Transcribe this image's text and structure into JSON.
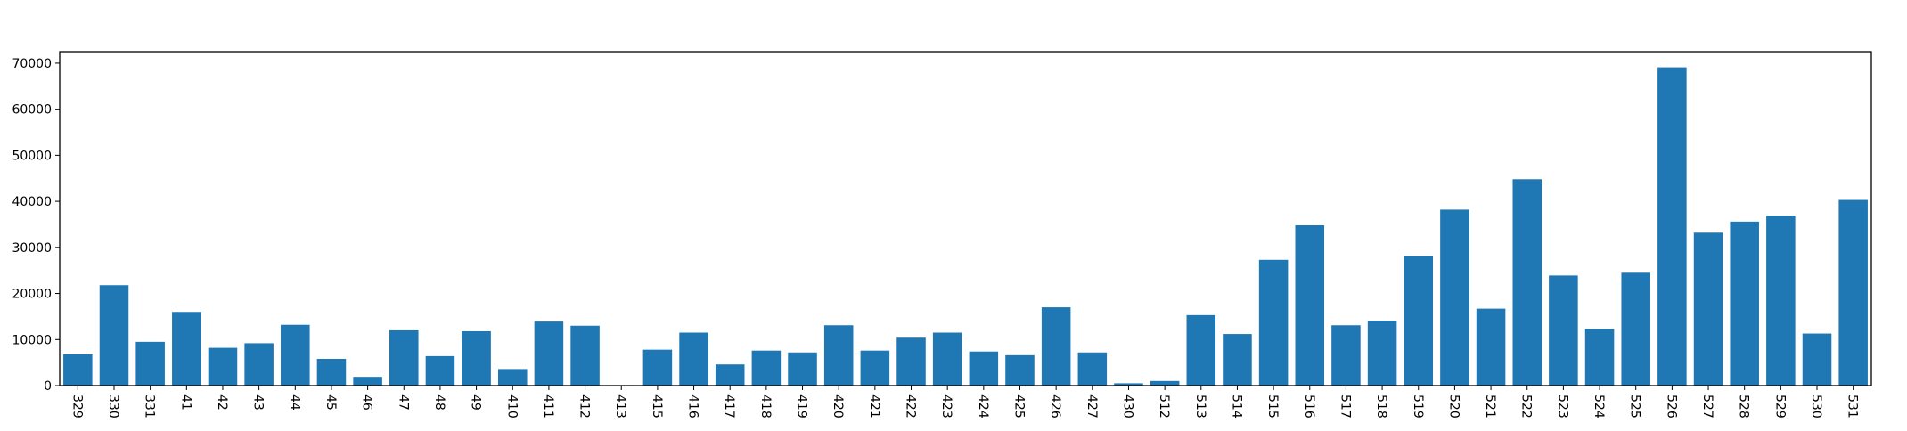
{
  "chart_data": {
    "type": "bar",
    "title": "",
    "xlabel": "",
    "ylabel": "",
    "ylim": [
      0,
      72500
    ],
    "yticks": [
      0,
      10000,
      20000,
      30000,
      40000,
      50000,
      60000,
      70000
    ],
    "ytick_labels": [
      "0",
      "10000",
      "20000",
      "30000",
      "40000",
      "50000",
      "60000",
      "70000"
    ],
    "grid": false,
    "bar_color": "#1f77b4",
    "categories": [
      "329",
      "330",
      "331",
      "41",
      "42",
      "43",
      "44",
      "45",
      "46",
      "47",
      "48",
      "49",
      "410",
      "411",
      "412",
      "413",
      "415",
      "416",
      "417",
      "418",
      "419",
      "420",
      "421",
      "422",
      "423",
      "424",
      "425",
      "426",
      "427",
      "430",
      "512",
      "513",
      "514",
      "515",
      "516",
      "517",
      "518",
      "519",
      "520",
      "521",
      "522",
      "523",
      "524",
      "525",
      "526",
      "527",
      "528",
      "529",
      "530",
      "531"
    ],
    "values": [
      6800,
      21800,
      9500,
      16000,
      8200,
      9200,
      13200,
      5800,
      1900,
      12000,
      6400,
      11800,
      3600,
      13900,
      13000,
      100,
      7800,
      11500,
      4600,
      7600,
      7200,
      13100,
      7600,
      10400,
      11500,
      7400,
      6600,
      17000,
      7200,
      500,
      1000,
      15300,
      11200,
      27300,
      34800,
      13100,
      14100,
      28100,
      38200,
      16700,
      44800,
      23900,
      12300,
      24500,
      69100,
      33200,
      35600,
      36900,
      11300,
      40300
    ]
  }
}
